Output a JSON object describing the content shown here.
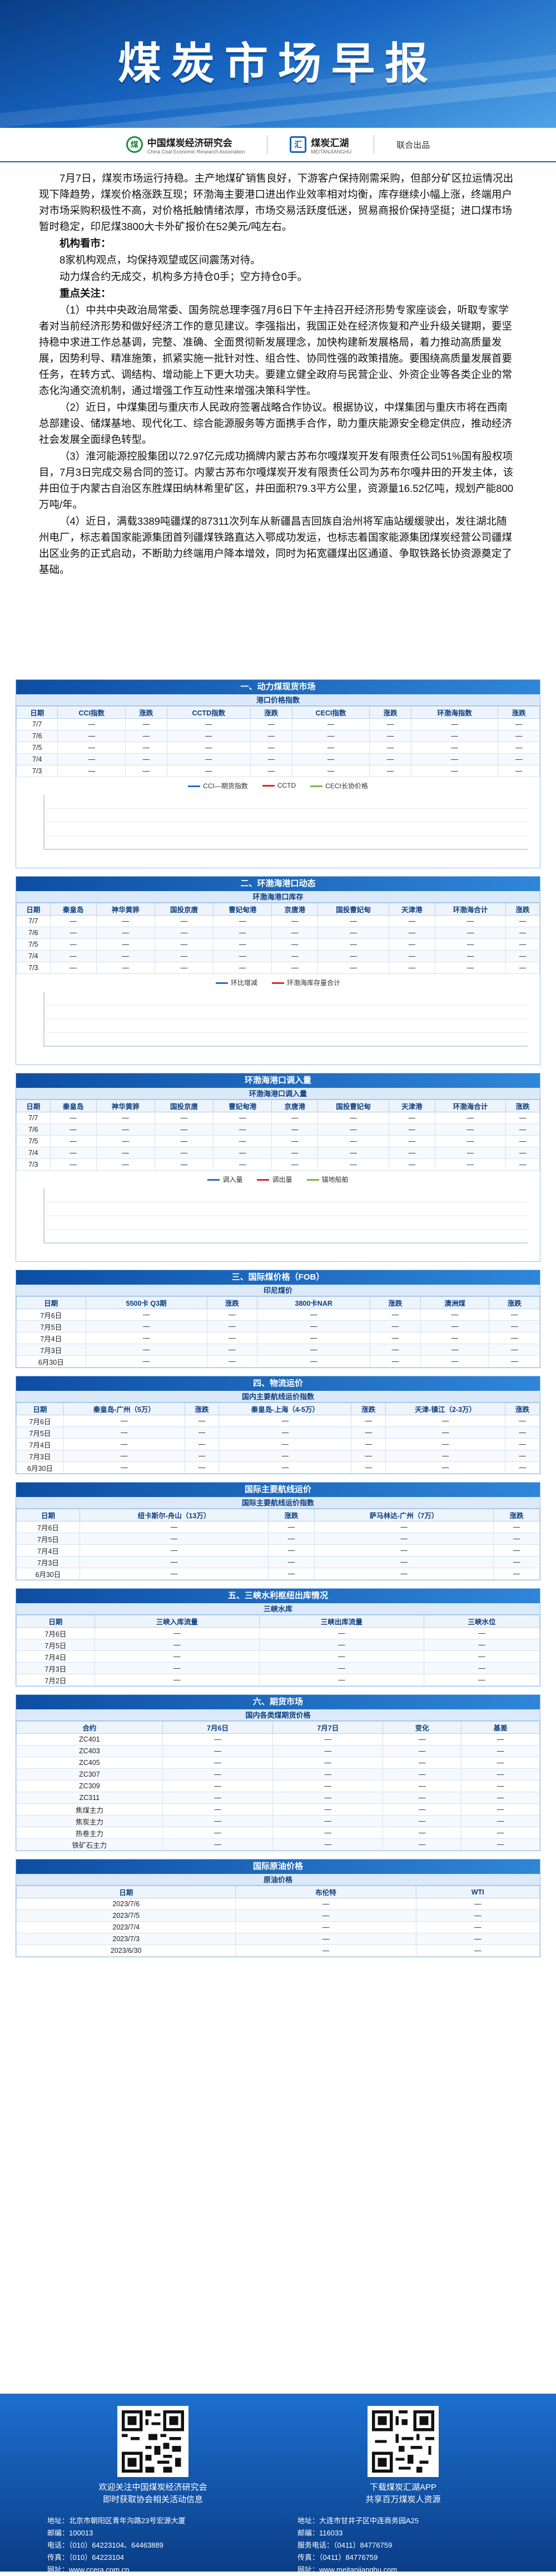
{
  "banner": {
    "title": "煤炭市场早报"
  },
  "logos": {
    "org1_name": "中国煤炭经济研究会",
    "org1_sub": "China Coal Economic Research Association",
    "org1_mark": "煤",
    "org2_name": "煤炭汇湖",
    "org2_sub": "MEITANJIANGHU",
    "org2_mark": "汇",
    "joint": "联合出品"
  },
  "lead": {
    "p1": "7月7日，煤炭市场运行持稳。主产地煤矿销售良好，下游客户保持刚需采购，但部分矿区拉运情况出现下降趋势，煤炭价格涨跌互现；环渤海主要港口进出作业效率相对均衡，库存继续小幅上涨，终端用户对市场采购积极性不高，对价格抵触情绪浓厚，市场交易活跃度低迷，贸易商报价保持坚挺；进口煤市场暂时稳定，印尼煤3800大卡外矿报价在52美元/吨左右。",
    "h1": "机构看市：",
    "p2": "8家机构观点，均保持观望或区间震荡对待。",
    "p3": "动力煤合约无成交，机构多方持仓0手；空方持仓0手。",
    "h2": "重点关注：",
    "p4": "（1）中共中央政治局常委、国务院总理李强7月6日下午主持召开经济形势专家座谈会，听取专家学者对当前经济形势和做好经济工作的意见建议。李强指出，我国正处在经济恢复和产业升级关键期，要坚持稳中求进工作总基调，完整、准确、全面贯彻新发展理念，加快构建新发展格局，着力推动高质量发展，因势利导、精准施策，抓紧实施一批针对性、组合性、协同性强的政策措施。要围绕高质量发展首要任务，在转方式、调结构、增动能上下更大功夫。要建立健全政府与民营企业、外资企业等各类企业的常态化沟通交流机制，通过增强工作互动性来增强决策科学性。",
    "p5": "（2）近日，中煤集团与重庆市人民政府签署战略合作协议。根据协议，中煤集团与重庆市将在西南总部建设、储煤基地、现代化工、综合能源服务等方面携手合作，助力重庆能源安全稳定供应，推动经济社会发展全面绿色转型。",
    "p6": "（3）淮河能源控股集团以72.97亿元成功摘牌内蒙古苏布尔嘎煤炭开发有限责任公司51%国有股权项目，7月3日完成交易合同的签订。内蒙古苏布尔嘎煤炭开发有限责任公司为苏布尔嘎井田的开发主体，该井田位于内蒙古自治区东胜煤田纳林希里矿区，井田面积79.3平方公里，资源量16.52亿吨，规划产能800万吨/年。",
    "p7": "（4）近日，满载3389吨疆煤的87311次列车从新疆昌吉回族自治州将军庙站缓缓驶出，发往湖北随州电厂，标志着国家能源集团首列疆煤铁路直达入鄂成功发运，也标志着国家能源集团煤炭经营公司疆煤出区业务的正式启动，不断助力终端用户降本增效，同时为拓宽疆煤出区通道、争取铁路长协资源奠定了基础。"
  },
  "sections": [
    {
      "title": "一、动力煤现货市场",
      "subtitle": "港口价格指数",
      "columns": [
        "日期",
        "CCI指数",
        "涨跌",
        "CCTD指数",
        "涨跌",
        "CECI指数",
        "涨跌",
        "环渤海指数",
        "涨跌"
      ],
      "rows": [
        [
          "7/7",
          "—",
          "—",
          "—",
          "—",
          "—",
          "—",
          "—",
          "—"
        ],
        [
          "7/6",
          "—",
          "—",
          "—",
          "—",
          "—",
          "—",
          "—",
          "—"
        ],
        [
          "7/5",
          "—",
          "—",
          "—",
          "—",
          "—",
          "—",
          "—",
          "—"
        ],
        [
          "7/4",
          "—",
          "—",
          "—",
          "—",
          "—",
          "—",
          "—",
          "—"
        ],
        [
          "7/3",
          "—",
          "—",
          "—",
          "—",
          "—",
          "—",
          "—",
          "—"
        ]
      ],
      "chart_data": {
        "type": "line",
        "x": [
          "—"
        ],
        "series": [
          {
            "name": "CCI—期货指数",
            "values": [
              0
            ]
          },
          {
            "name": "CCTD",
            "values": [
              0
            ]
          },
          {
            "name": "CECI长协价格",
            "values": [
              0
            ]
          }
        ]
      }
    },
    {
      "title": "二、环渤海港口动态",
      "subtitle": "环渤海港口库存",
      "columns": [
        "日期",
        "秦皇岛",
        "神华黄骅",
        "国投京唐",
        "曹妃甸港",
        "京唐港",
        "国投曹妃甸",
        "天津港",
        "环渤海合计",
        "涨跌"
      ],
      "rows": [
        [
          "7/7",
          "—",
          "—",
          "—",
          "—",
          "—",
          "—",
          "—",
          "—",
          "—"
        ],
        [
          "7/6",
          "—",
          "—",
          "—",
          "—",
          "—",
          "—",
          "—",
          "—",
          "—"
        ],
        [
          "7/5",
          "—",
          "—",
          "—",
          "—",
          "—",
          "—",
          "—",
          "—",
          "—"
        ],
        [
          "7/4",
          "—",
          "—",
          "—",
          "—",
          "—",
          "—",
          "—",
          "—",
          "—"
        ],
        [
          "7/3",
          "—",
          "—",
          "—",
          "—",
          "—",
          "—",
          "—",
          "—",
          "—"
        ]
      ],
      "chart_data": {
        "type": "line",
        "x": [
          "—"
        ],
        "series": [
          {
            "name": "环比增减",
            "values": [
              0
            ]
          },
          {
            "name": "环渤海库存量合计",
            "values": [
              0
            ]
          }
        ]
      }
    },
    {
      "title": "环渤海港口调入量",
      "subtitle": "环渤海港口调入量",
      "columns": [
        "日期",
        "秦皇岛",
        "神华黄骅",
        "国投京唐",
        "曹妃甸港",
        "京唐港",
        "国投曹妃甸",
        "天津港",
        "环渤海合计",
        "涨跌"
      ],
      "rows": [
        [
          "7/7",
          "—",
          "—",
          "—",
          "—",
          "—",
          "—",
          "—",
          "—",
          "—"
        ],
        [
          "7/6",
          "—",
          "—",
          "—",
          "—",
          "—",
          "—",
          "—",
          "—",
          "—"
        ],
        [
          "7/5",
          "—",
          "—",
          "—",
          "—",
          "—",
          "—",
          "—",
          "—",
          "—"
        ],
        [
          "7/4",
          "—",
          "—",
          "—",
          "—",
          "—",
          "—",
          "—",
          "—",
          "—"
        ],
        [
          "7/3",
          "—",
          "—",
          "—",
          "—",
          "—",
          "—",
          "—",
          "—",
          "—"
        ]
      ],
      "chart_data": {
        "type": "line",
        "x": [
          "—"
        ],
        "series": [
          {
            "name": "调入量",
            "values": [
              0
            ]
          },
          {
            "name": "调出量",
            "values": [
              0
            ]
          },
          {
            "name": "锚地船舶",
            "values": [
              0
            ]
          }
        ]
      }
    },
    {
      "title": "三、国际煤价格（FOB）",
      "subtitle": "印尼煤价",
      "columns": [
        "日期",
        "5500卡 Q3期",
        "涨跌",
        "3800卡NAR",
        "涨跌",
        "澳洲煤",
        "涨跌"
      ],
      "rows": [
        [
          "7月6日",
          "—",
          "—",
          "—",
          "—",
          "—",
          "—"
        ],
        [
          "7月5日",
          "—",
          "—",
          "—",
          "—",
          "—",
          "—"
        ],
        [
          "7月4日",
          "—",
          "—",
          "—",
          "—",
          "—",
          "—"
        ],
        [
          "7月3日",
          "—",
          "—",
          "—",
          "—",
          "—",
          "—"
        ],
        [
          "6月30日",
          "—",
          "—",
          "—",
          "—",
          "—",
          "—"
        ]
      ],
      "chart_data": null
    },
    {
      "title": "四、物流运价",
      "subtitle": "国内主要航线运价指数",
      "columns": [
        "日期",
        "秦皇岛-广州（5万）",
        "涨跌",
        "秦皇岛-上海（4-5万）",
        "涨跌",
        "天津-镇江（2-3万）",
        "涨跌"
      ],
      "rows": [
        [
          "7月6日",
          "—",
          "—",
          "—",
          "—",
          "—",
          "—"
        ],
        [
          "7月5日",
          "—",
          "—",
          "—",
          "—",
          "—",
          "—"
        ],
        [
          "7月4日",
          "—",
          "—",
          "—",
          "—",
          "—",
          "—"
        ],
        [
          "7月3日",
          "—",
          "—",
          "—",
          "—",
          "—",
          "—"
        ],
        [
          "6月30日",
          "—",
          "—",
          "—",
          "—",
          "—",
          "—"
        ]
      ],
      "chart_data": null
    },
    {
      "title": "国际主要航线运价",
      "subtitle": "国际主要航线运价指数",
      "columns": [
        "日期",
        "纽卡斯尔-舟山（13万）",
        "涨跌",
        "萨马林达-广州（7万）",
        "涨跌"
      ],
      "rows": [
        [
          "7月6日",
          "—",
          "—",
          "—",
          "—"
        ],
        [
          "7月5日",
          "—",
          "—",
          "—",
          "—"
        ],
        [
          "7月4日",
          "—",
          "—",
          "—",
          "—"
        ],
        [
          "7月3日",
          "—",
          "—",
          "—",
          "—"
        ],
        [
          "6月30日",
          "—",
          "—",
          "—",
          "—"
        ]
      ],
      "chart_data": null
    },
    {
      "title": "五、三峡水利枢纽出库情况",
      "subtitle": "三峡水库",
      "columns": [
        "日期",
        "三峡入库流量",
        "三峡出库流量",
        "三峡水位"
      ],
      "rows": [
        [
          "7月6日",
          "—",
          "—",
          "—"
        ],
        [
          "7月5日",
          "—",
          "—",
          "—"
        ],
        [
          "7月4日",
          "—",
          "—",
          "—"
        ],
        [
          "7月3日",
          "—",
          "—",
          "—"
        ],
        [
          "7月2日",
          "—",
          "—",
          "—"
        ]
      ],
      "chart_data": null
    },
    {
      "title": "六、期货市场",
      "subtitle": "国内各类煤期货价格",
      "columns": [
        "合约",
        "7月6日",
        "7月7日",
        "变化",
        "基差"
      ],
      "rows": [
        [
          "ZC401",
          "—",
          "—",
          "—",
          "—"
        ],
        [
          "ZC403",
          "—",
          "—",
          "—",
          "—"
        ],
        [
          "ZC405",
          "—",
          "—",
          "—",
          "—"
        ],
        [
          "ZC307",
          "—",
          "—",
          "—",
          "—"
        ],
        [
          "ZC309",
          "—",
          "—",
          "—",
          "—"
        ],
        [
          "ZC311",
          "—",
          "—",
          "—",
          "—"
        ],
        [
          "焦煤主力",
          "—",
          "—",
          "—",
          "—"
        ],
        [
          "焦炭主力",
          "—",
          "—",
          "—",
          "—"
        ],
        [
          "热卷主力",
          "—",
          "—",
          "—",
          "—"
        ],
        [
          "铁矿石主力",
          "—",
          "—",
          "—",
          "—"
        ]
      ],
      "chart_data": null
    },
    {
      "title": "国际原油价格",
      "subtitle": "原油价格",
      "columns": [
        "日期",
        "布伦特",
        "WTI"
      ],
      "rows": [
        [
          "2023/7/6",
          "—",
          "—"
        ],
        [
          "2023/7/5",
          "—",
          "—"
        ],
        [
          "2023/7/4",
          "—",
          "—"
        ],
        [
          "2023/7/3",
          "—",
          "—"
        ],
        [
          "2023/6/30",
          "—",
          "—"
        ]
      ],
      "chart_data": null
    }
  ],
  "footer": {
    "qr1_caption_1": "欢迎关注中国煤炭经济研究会",
    "qr1_caption_2": "即时获取协会相关活动信息",
    "qr2_caption_1": "下载煤炭汇湖APP",
    "qr2_caption_2": "共享百万煤炭人资源",
    "contact1_addr": "地址：北京市朝阳区青年沟路23号宏源大厦",
    "contact1_post": "邮编：100013",
    "contact1_tel": "电话：（010）64223104、64463889",
    "contact1_fax": "传真：（010）64223104",
    "contact1_web": "网址：www.ccera.com.cn",
    "contact2_addr": "地址：大连市甘井子区中连商务园A25",
    "contact2_post": "邮编：116033",
    "contact2_tel": "服务电话：（0411）84776759",
    "contact2_fax": "传真：（0411）84776759",
    "contact2_web": "网址：www.meitanjianghu.com"
  },
  "colors": {
    "accent": "#1664c0",
    "up": "#d9262c",
    "down": "#1e8a3c"
  }
}
